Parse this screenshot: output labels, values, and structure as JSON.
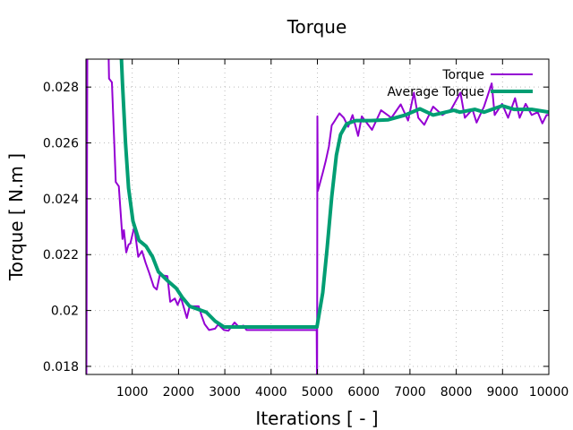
{
  "chart_data": {
    "type": "line",
    "title": "Torque",
    "xlabel": "Iterations [ - ]",
    "ylabel": "Torque [ N.m ]",
    "xlim": [
      0,
      10000
    ],
    "ylim": [
      0.01771,
      0.029
    ],
    "xticks": [
      1000,
      2000,
      3000,
      4000,
      5000,
      6000,
      7000,
      8000,
      9000,
      10000
    ],
    "xtick_labels": [
      "1000",
      "2000",
      "3000",
      "4000",
      "5000",
      "6000",
      "7000",
      "8000",
      "9000",
      "10000"
    ],
    "yticks": [
      0.018,
      0.02,
      0.022,
      0.024,
      0.026,
      0.028
    ],
    "ytick_labels": [
      "0.018",
      "0.02",
      "0.022",
      "0.024",
      "0.026",
      "0.028"
    ],
    "grid": true,
    "legend_position": "top-right",
    "series": [
      {
        "name": "Torque",
        "color": "#9400d3",
        "x": [
          0,
          10,
          30,
          480,
          500,
          560,
          645,
          710,
          790,
          820,
          870,
          920,
          960,
          1045,
          1130,
          1210,
          1290,
          1370,
          1465,
          1530,
          1595,
          1760,
          1820,
          1920,
          1980,
          2050,
          2180,
          2240,
          2435,
          2500,
          2565,
          2660,
          2790,
          2855,
          2980,
          3080,
          3210,
          3310,
          3400,
          3470,
          4985,
          4990,
          4995,
          5000,
          5010,
          5116,
          5180,
          5250,
          5310,
          5375,
          5475,
          5570,
          5665,
          5760,
          5880,
          5960,
          6180,
          6375,
          6600,
          6800,
          6960,
          7085,
          7180,
          7310,
          7500,
          7700,
          7890,
          8090,
          8185,
          8350,
          8440,
          8600,
          8765,
          8830,
          8990,
          9120,
          9270,
          9370,
          9500,
          9630,
          9760,
          9860,
          9950,
          10000
        ],
        "y": [
          0.0176,
          0.0176,
          0.03,
          0.03,
          0.0283,
          0.02817,
          0.0246,
          0.02445,
          0.02256,
          0.02288,
          0.02208,
          0.02236,
          0.0224,
          0.023,
          0.02192,
          0.02213,
          0.0217,
          0.02133,
          0.02085,
          0.02075,
          0.02127,
          0.02123,
          0.02031,
          0.02043,
          0.0202,
          0.02047,
          0.01973,
          0.02015,
          0.02015,
          0.0198,
          0.01951,
          0.0193,
          0.01935,
          0.0195,
          0.0193,
          0.01928,
          0.01957,
          0.0194,
          0.01946,
          0.0193,
          0.0193,
          0.0176,
          0.0176,
          0.02695,
          0.02428,
          0.02493,
          0.02535,
          0.02588,
          0.02663,
          0.02679,
          0.02706,
          0.0269,
          0.02658,
          0.027,
          0.02625,
          0.02695,
          0.02647,
          0.02717,
          0.0269,
          0.02738,
          0.0268,
          0.0278,
          0.0269,
          0.02665,
          0.0273,
          0.027,
          0.0272,
          0.0278,
          0.0269,
          0.0272,
          0.02673,
          0.0273,
          0.02813,
          0.027,
          0.0274,
          0.0269,
          0.0276,
          0.0269,
          0.0274,
          0.027,
          0.0271,
          0.0267,
          0.027,
          0.027
        ]
      },
      {
        "name": "Average Torque",
        "color": "#009e73",
        "x": [
          740,
          790,
          855,
          920,
          1015,
          1145,
          1300,
          1440,
          1565,
          1760,
          1950,
          2080,
          2240,
          2600,
          2790,
          2985,
          4990,
          5116,
          5210,
          5310,
          5410,
          5500,
          5630,
          5825,
          6150,
          6530,
          6900,
          7215,
          7500,
          7950,
          8080,
          8400,
          8600,
          8990,
          9250,
          9630,
          10000
        ],
        "y": [
          0.03,
          0.02813,
          0.02599,
          0.02438,
          0.0232,
          0.02251,
          0.0223,
          0.02192,
          0.02139,
          0.02107,
          0.0208,
          0.02047,
          0.02015,
          0.01994,
          0.01962,
          0.01941,
          0.01941,
          0.02064,
          0.02224,
          0.02406,
          0.02556,
          0.0263,
          0.02668,
          0.0268,
          0.0268,
          0.02683,
          0.027,
          0.02722,
          0.027,
          0.02717,
          0.0271,
          0.0272,
          0.0271,
          0.02733,
          0.0272,
          0.0272,
          0.0271
        ]
      }
    ]
  }
}
